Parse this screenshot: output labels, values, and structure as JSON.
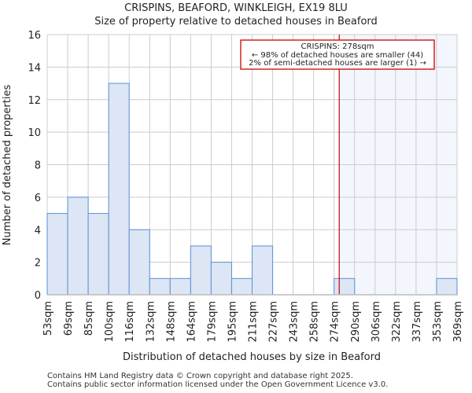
{
  "chart_data": {
    "type": "bar",
    "title": "CRISPINS, BEAFORD, WINKLEIGH, EX19 8LU",
    "subtitle": "Size of property relative to detached houses in Beaford",
    "xlabel": "Distribution of detached houses by size in Beaford",
    "ylabel": "Number of detached properties",
    "bin_edges": [
      53,
      69,
      85,
      100,
      116,
      132,
      148,
      164,
      179,
      195,
      211,
      227,
      243,
      258,
      274,
      290,
      306,
      322,
      337,
      353,
      369
    ],
    "tick_labels": [
      "53sqm",
      "69sqm",
      "85sqm",
      "100sqm",
      "116sqm",
      "132sqm",
      "148sqm",
      "164sqm",
      "179sqm",
      "195sqm",
      "211sqm",
      "227sqm",
      "243sqm",
      "258sqm",
      "274sqm",
      "290sqm",
      "306sqm",
      "322sqm",
      "337sqm",
      "353sqm",
      "369sqm"
    ],
    "values": [
      5,
      6,
      5,
      13,
      4,
      1,
      1,
      3,
      2,
      1,
      3,
      0,
      0,
      0,
      1,
      0,
      0,
      0,
      0,
      1
    ],
    "ylim": [
      0,
      16
    ],
    "yticks": [
      0,
      2,
      4,
      6,
      8,
      10,
      12,
      14,
      16
    ],
    "grid": true,
    "marker_value": 278,
    "annotation": {
      "line1": "CRISPINS: 278sqm",
      "line2": "← 98% of detached houses are smaller (44)",
      "line3": "2% of semi-detached houses are larger (1) →"
    },
    "colors": {
      "bar_fill": "#dce6f4",
      "bar_edge": "#5b8fd6",
      "marker": "#cc0000",
      "shade": "#f3f6fd",
      "grid": "#cccccc"
    }
  },
  "footer": {
    "line1": "Contains HM Land Registry data © Crown copyright and database right 2025.",
    "line2": "Contains public sector information licensed under the Open Government Licence v3.0."
  }
}
